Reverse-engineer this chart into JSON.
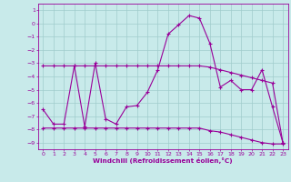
{
  "xlabel": "Windchill (Refroidissement éolien,°C)",
  "bg_color": "#c8eaea",
  "line_color": "#990099",
  "grid_color": "#a0cccc",
  "xlim": [
    -0.5,
    23.5
  ],
  "ylim": [
    -9.5,
    1.5
  ],
  "xticks": [
    0,
    1,
    2,
    3,
    4,
    5,
    6,
    7,
    8,
    9,
    10,
    11,
    12,
    13,
    14,
    15,
    16,
    17,
    18,
    19,
    20,
    21,
    22,
    23
  ],
  "yticks": [
    1,
    0,
    -1,
    -2,
    -3,
    -4,
    -5,
    -6,
    -7,
    -8,
    -9
  ],
  "line1_x": [
    0,
    1,
    2,
    3,
    4,
    5,
    6,
    7,
    8,
    9,
    10,
    11,
    12,
    13,
    14,
    15,
    16,
    17,
    18,
    19,
    20,
    21,
    22,
    23
  ],
  "line1_y": [
    -6.5,
    -7.6,
    -7.6,
    -3.2,
    -7.8,
    -3.0,
    -7.2,
    -7.6,
    -6.3,
    -6.2,
    -5.2,
    -3.5,
    -0.8,
    -0.1,
    0.6,
    0.4,
    -1.5,
    -4.8,
    -4.3,
    -5.0,
    -5.0,
    -3.5,
    -6.3,
    -9.0
  ],
  "line2_x": [
    0,
    1,
    2,
    3,
    4,
    5,
    6,
    7,
    8,
    9,
    10,
    11,
    12,
    13,
    14,
    15,
    16,
    17,
    18,
    19,
    20,
    21,
    22,
    23
  ],
  "line2_y": [
    -3.2,
    -3.2,
    -3.2,
    -3.2,
    -3.2,
    -3.2,
    -3.2,
    -3.2,
    -3.2,
    -3.2,
    -3.2,
    -3.2,
    -3.2,
    -3.2,
    -3.2,
    -3.2,
    -3.3,
    -3.5,
    -3.7,
    -3.9,
    -4.1,
    -4.3,
    -4.5,
    -9.0
  ],
  "line3_x": [
    0,
    1,
    2,
    3,
    4,
    5,
    6,
    7,
    8,
    9,
    10,
    11,
    12,
    13,
    14,
    15,
    16,
    17,
    18,
    19,
    20,
    21,
    22,
    23
  ],
  "line3_y": [
    -7.9,
    -7.9,
    -7.9,
    -7.9,
    -7.9,
    -7.9,
    -7.9,
    -7.9,
    -7.9,
    -7.9,
    -7.9,
    -7.9,
    -7.9,
    -7.9,
    -7.9,
    -7.9,
    -8.1,
    -8.2,
    -8.4,
    -8.6,
    -8.8,
    -9.0,
    -9.1,
    -9.1
  ]
}
